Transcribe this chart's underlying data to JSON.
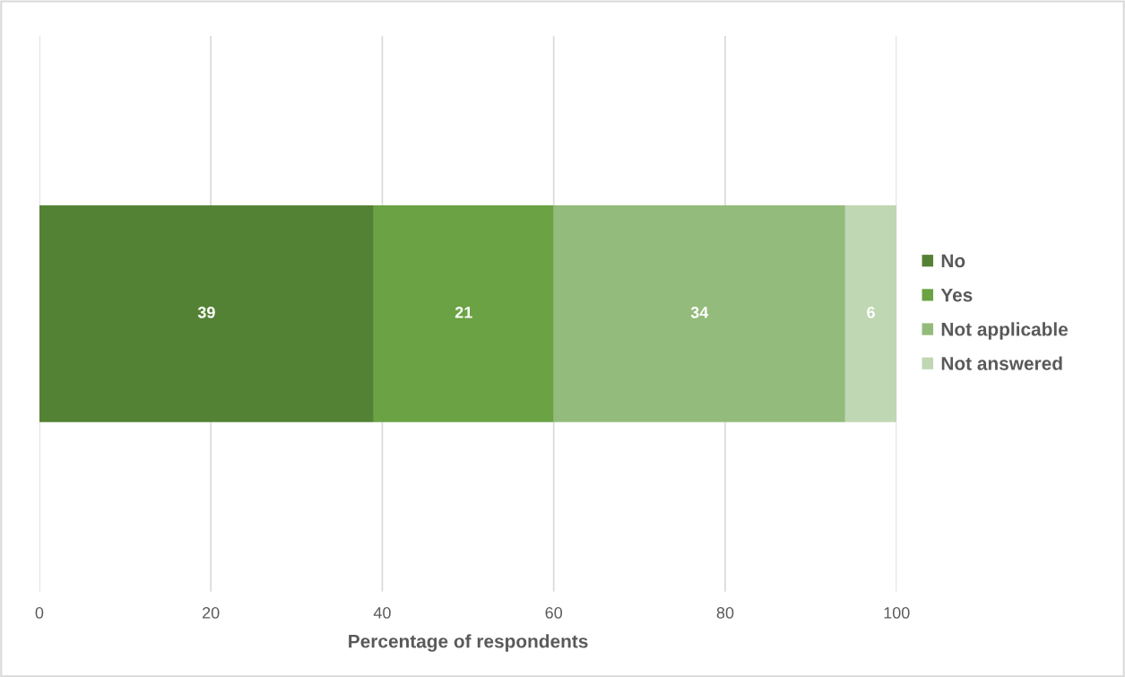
{
  "chart_data": {
    "type": "bar",
    "orientation": "horizontal",
    "stacked": true,
    "xlabel": "Percentage of respondents",
    "categories": [
      null
    ],
    "series": [
      {
        "name": "No",
        "color": "#548235",
        "values": [
          39
        ]
      },
      {
        "name": "Yes",
        "color": "#6aa244",
        "values": [
          21
        ]
      },
      {
        "name": "Not applicable",
        "color": "#93bb7b",
        "values": [
          34
        ]
      },
      {
        "name": "Not answered",
        "color": "#bfd7b2",
        "values": [
          6
        ]
      }
    ],
    "xlim": [
      0,
      100
    ],
    "xticks": [
      0,
      20,
      40,
      60,
      80,
      100
    ],
    "grid": "x",
    "legend": "right",
    "data_labels": true,
    "tick_labels": "x"
  }
}
